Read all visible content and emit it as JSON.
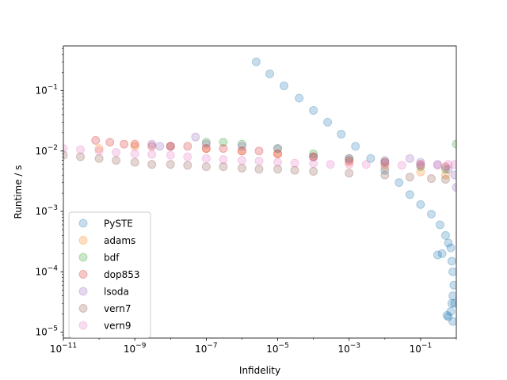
{
  "chart_data": {
    "type": "scatter",
    "xlabel": "Infidelity",
    "ylabel": "Runtime / s",
    "xscale": "log",
    "yscale": "log",
    "xlim": [
      1e-11,
      1.0
    ],
    "ylim": [
      8e-06,
      0.55
    ],
    "xticks": [
      {
        "value": 1e-11,
        "base": "10",
        "exp": "−11"
      },
      {
        "value": 1e-09,
        "base": "10",
        "exp": "−9"
      },
      {
        "value": 1e-07,
        "base": "10",
        "exp": "−7"
      },
      {
        "value": 1e-05,
        "base": "10",
        "exp": "−5"
      },
      {
        "value": 0.001,
        "base": "10",
        "exp": "−3"
      },
      {
        "value": 0.1,
        "base": "10",
        "exp": "−1"
      }
    ],
    "yticks": [
      {
        "value": 1e-05,
        "base": "10",
        "exp": "−5"
      },
      {
        "value": 0.0001,
        "base": "10",
        "exp": "−4"
      },
      {
        "value": 0.001,
        "base": "10",
        "exp": "−3"
      },
      {
        "value": 0.01,
        "base": "10",
        "exp": "−2"
      },
      {
        "value": 0.1,
        "base": "10",
        "exp": "−1"
      }
    ],
    "grid": false,
    "legend": "lower-left",
    "marker_alpha": 0.25,
    "series": [
      {
        "name": "PySTE",
        "color": "#1f77b4",
        "points": [
          [
            2.5e-06,
            0.3
          ],
          [
            6e-06,
            0.19
          ],
          [
            1.5e-05,
            0.12
          ],
          [
            4e-05,
            0.075
          ],
          [
            0.0001,
            0.047
          ],
          [
            0.00025,
            0.03
          ],
          [
            0.0006,
            0.019
          ],
          [
            0.0015,
            0.012
          ],
          [
            0.004,
            0.0075
          ],
          [
            0.01,
            0.0048
          ],
          [
            0.025,
            0.003
          ],
          [
            0.05,
            0.0019
          ],
          [
            0.1,
            0.0013
          ],
          [
            0.2,
            0.0009
          ],
          [
            0.35,
            0.0006
          ],
          [
            0.5,
            0.0004
          ],
          [
            0.6,
            0.0003
          ],
          [
            0.7,
            0.00025
          ],
          [
            0.75,
            0.00015
          ],
          [
            0.8,
            0.0001
          ],
          [
            0.4,
            0.0002
          ],
          [
            0.3,
            0.00019
          ],
          [
            0.85,
            6e-05
          ],
          [
            0.8,
            4e-05
          ],
          [
            0.75,
            3e-05
          ],
          [
            0.7,
            2.2e-05
          ],
          [
            0.6,
            1.8e-05
          ],
          [
            0.55,
            1.9e-05
          ],
          [
            0.9,
            3e-05
          ],
          [
            0.8,
            1.5e-05
          ]
        ]
      },
      {
        "name": "adams",
        "color": "#ff7f0e",
        "points": [
          [
            1e-10,
            0.011
          ],
          [
            1e-09,
            0.012
          ],
          [
            1e-08,
            0.012
          ],
          [
            1e-07,
            0.011
          ],
          [
            1e-06,
            0.01
          ],
          [
            1e-05,
            0.009
          ],
          [
            0.0001,
            0.008
          ],
          [
            0.001,
            0.0065
          ],
          [
            0.01,
            0.0055
          ],
          [
            0.1,
            0.0045
          ],
          [
            0.5,
            0.004
          ]
        ]
      },
      {
        "name": "bdf",
        "color": "#2ca02c",
        "points": [
          [
            1e-07,
            0.014
          ],
          [
            3e-07,
            0.014
          ],
          [
            1e-06,
            0.013
          ],
          [
            1e-05,
            0.011
          ],
          [
            0.0001,
            0.009
          ],
          [
            0.001,
            0.0075
          ],
          [
            0.01,
            0.0065
          ],
          [
            0.1,
            0.0055
          ],
          [
            0.5,
            0.005
          ],
          [
            1.0,
            0.013
          ]
        ]
      },
      {
        "name": "dop853",
        "color": "#d62728",
        "points": [
          [
            8e-11,
            0.015
          ],
          [
            2e-10,
            0.014
          ],
          [
            5e-10,
            0.013
          ],
          [
            1e-09,
            0.013
          ],
          [
            3e-09,
            0.012
          ],
          [
            1e-08,
            0.012
          ],
          [
            3e-08,
            0.012
          ],
          [
            1e-07,
            0.011
          ],
          [
            3e-07,
            0.011
          ],
          [
            1e-06,
            0.01
          ],
          [
            3e-06,
            0.01
          ],
          [
            1e-05,
            0.009
          ],
          [
            0.0001,
            0.008
          ],
          [
            0.001,
            0.007
          ],
          [
            0.01,
            0.0065
          ],
          [
            0.1,
            0.006
          ],
          [
            0.5,
            0.0055
          ]
        ]
      },
      {
        "name": "lsoda",
        "color": "#9467bd",
        "points": [
          [
            3e-09,
            0.013
          ],
          [
            5e-09,
            0.012
          ],
          [
            1e-08,
            0.012
          ],
          [
            5e-08,
            0.017
          ],
          [
            1e-07,
            0.013
          ],
          [
            1e-06,
            0.012
          ],
          [
            1e-05,
            0.011
          ],
          [
            0.0001,
            0.008
          ],
          [
            0.001,
            0.0075
          ],
          [
            0.01,
            0.007
          ],
          [
            0.05,
            0.0075
          ],
          [
            0.1,
            0.0065
          ],
          [
            0.3,
            0.006
          ],
          [
            0.6,
            0.005
          ],
          [
            0.9,
            0.004
          ],
          [
            1.0,
            0.0025
          ]
        ]
      },
      {
        "name": "vern7",
        "color": "#8c564b",
        "points": [
          [
            1e-11,
            0.0085
          ],
          [
            3e-11,
            0.008
          ],
          [
            1e-10,
            0.0075
          ],
          [
            3e-10,
            0.007
          ],
          [
            1e-09,
            0.0065
          ],
          [
            3e-09,
            0.006
          ],
          [
            1e-08,
            0.006
          ],
          [
            3e-08,
            0.0058
          ],
          [
            1e-07,
            0.0055
          ],
          [
            3e-07,
            0.0055
          ],
          [
            1e-06,
            0.0052
          ],
          [
            3e-06,
            0.005
          ],
          [
            1e-05,
            0.005
          ],
          [
            3e-05,
            0.0048
          ],
          [
            0.0001,
            0.0046
          ],
          [
            0.001,
            0.0043
          ],
          [
            0.01,
            0.004
          ],
          [
            0.05,
            0.0037
          ],
          [
            0.2,
            0.0035
          ],
          [
            0.5,
            0.0034
          ]
        ]
      },
      {
        "name": "vern9",
        "color": "#e377c2",
        "points": [
          [
            1e-11,
            0.011
          ],
          [
            3e-11,
            0.0105
          ],
          [
            1e-10,
            0.01
          ],
          [
            3e-10,
            0.0095
          ],
          [
            1e-09,
            0.009
          ],
          [
            3e-09,
            0.0088
          ],
          [
            1e-08,
            0.0085
          ],
          [
            3e-08,
            0.008
          ],
          [
            1e-07,
            0.0075
          ],
          [
            3e-07,
            0.0072
          ],
          [
            1e-06,
            0.007
          ],
          [
            3e-06,
            0.0068
          ],
          [
            1e-05,
            0.0065
          ],
          [
            3e-05,
            0.0063
          ],
          [
            0.0001,
            0.0062
          ],
          [
            0.0003,
            0.006
          ],
          [
            0.001,
            0.006
          ],
          [
            0.003,
            0.006
          ],
          [
            0.01,
            0.006
          ],
          [
            0.03,
            0.0058
          ],
          [
            0.1,
            0.0058
          ],
          [
            0.3,
            0.0058
          ],
          [
            0.6,
            0.006
          ],
          [
            0.9,
            0.006
          ]
        ]
      }
    ]
  }
}
